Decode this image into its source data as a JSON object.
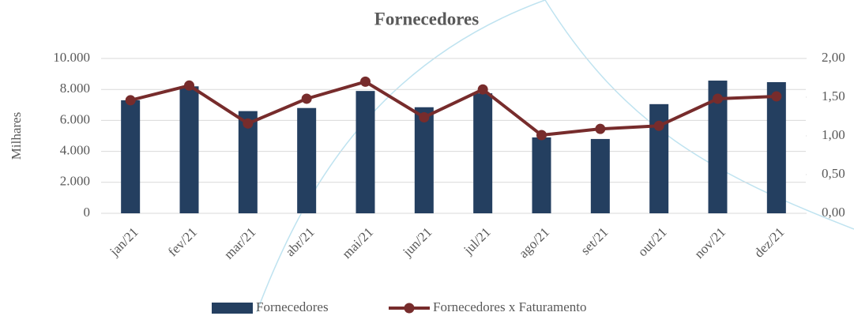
{
  "chart_data": {
    "type": "bar_line",
    "title": "Fornecedores",
    "y_label": "Milhares",
    "categories": [
      "jan/21",
      "fev/21",
      "mar/21",
      "abr/21",
      "mai/21",
      "jun/21",
      "jul/21",
      "ago/21",
      "set/21",
      "out/21",
      "nov/21",
      "dez/21"
    ],
    "series": [
      {
        "name": "Fornecedores",
        "type": "bar",
        "color": "#243f60",
        "values": [
          7300,
          8200,
          6600,
          6800,
          7900,
          6850,
          7750,
          4900,
          4800,
          7050,
          8570,
          8470
        ]
      },
      {
        "name": "Fornecedores x Faturamento",
        "type": "line",
        "axis": "y2",
        "color": "#772c2c",
        "values": [
          1.46,
          1.65,
          1.16,
          1.48,
          1.7,
          1.24,
          1.6,
          1.01,
          1.09,
          1.13,
          1.48,
          1.51
        ]
      }
    ],
    "ylim": [
      0,
      10000
    ],
    "yticks": [
      0,
      {
        "value": 2000,
        "label": "2.000"
      },
      {
        "value": 4000,
        "label": "4.000"
      },
      {
        "value": 6000,
        "label": "6.000"
      },
      {
        "value": 8000,
        "label": "8.000"
      },
      {
        "value": 10000,
        "label": "10.000"
      }
    ],
    "y2lim": [
      0,
      2
    ],
    "y2ticks": [
      {
        "value": 0,
        "label": "0,00"
      },
      {
        "value": 0.5,
        "label": "0,50"
      },
      {
        "value": 1,
        "label": "1,00"
      },
      {
        "value": 1.5,
        "label": "1,50"
      },
      {
        "value": 2,
        "label": "2,00"
      }
    ],
    "grid": true,
    "legend": "bottom"
  }
}
